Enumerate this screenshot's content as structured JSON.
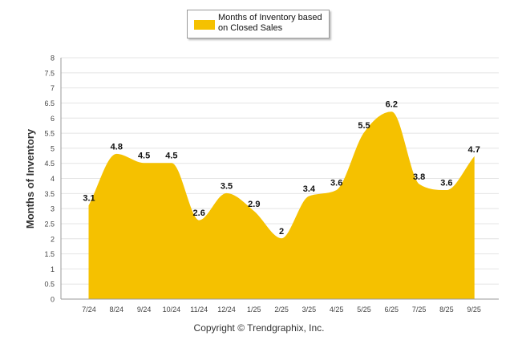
{
  "chart_data": {
    "type": "area",
    "title": "",
    "xlabel": "",
    "ylabel": "Months of Inventory",
    "ylim": [
      0,
      8
    ],
    "yticks": [
      "0",
      "0.5",
      "1",
      "1.5",
      "2",
      "2.5",
      "3",
      "3.5",
      "4",
      "4.5",
      "5",
      "5.5",
      "6",
      "6.5",
      "7",
      "7.5",
      "8"
    ],
    "categories": [
      "7/24",
      "8/24",
      "9/24",
      "10/24",
      "11/24",
      "12/24",
      "1/25",
      "2/25",
      "3/25",
      "4/25",
      "5/25",
      "6/25",
      "7/25",
      "8/25",
      "9/25"
    ],
    "series": [
      {
        "name": "Months of Inventory based on Closed Sales",
        "values": [
          3.1,
          4.8,
          4.5,
          4.5,
          2.6,
          3.5,
          2.9,
          2,
          3.4,
          3.6,
          5.5,
          6.2,
          3.8,
          3.6,
          4.7
        ],
        "labels": [
          "3.1",
          "4.8",
          "4.5",
          "4.5",
          "2.6",
          "3.5",
          "2.9",
          "2",
          "3.4",
          "3.6",
          "5.5",
          "6.2",
          "3.8",
          "3.6",
          "4.7"
        ],
        "color": "#f5c100"
      }
    ],
    "grid": true,
    "legend": "top-center"
  },
  "legend": {
    "line1": "Months of Inventory based",
    "line2": "on Closed Sales"
  },
  "footer": {
    "copyright": "Copyright © Trendgraphix, Inc."
  }
}
